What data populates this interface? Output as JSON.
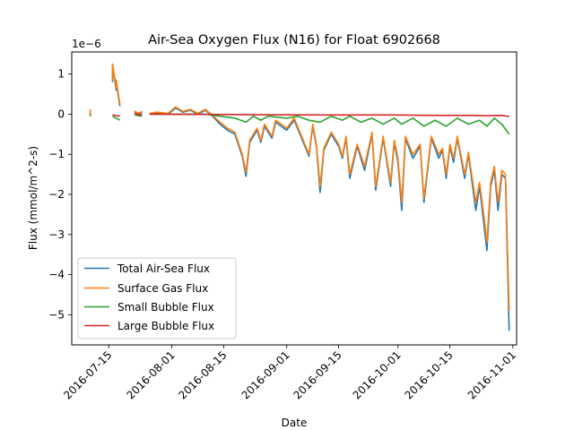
{
  "chart_data": {
    "type": "line",
    "title": "Air-Sea Oxygen Flux (N16) for Float 6902668",
    "xlabel": "Date",
    "ylabel": "Flux (mmol/m^2-s)",
    "y_offset_label": "1e−6",
    "x_ticks": [
      "2016-07-15",
      "2016-08-01",
      "2016-08-15",
      "2016-09-01",
      "2016-09-15",
      "2016-10-01",
      "2016-10-15",
      "2016-11-01"
    ],
    "y_ticks": [
      "1",
      "0",
      "−1",
      "−2",
      "−3",
      "−4",
      "−5"
    ],
    "x_range": [
      "2016-07-05",
      "2016-11-02"
    ],
    "ylim": [
      -5.75,
      1.55
    ],
    "grid": false,
    "legend_position": "lower-left",
    "series": [
      {
        "name": "Total Air-Sea Flux",
        "color": "#1f77b4",
        "points": [
          [
            "2016-07-10",
            0.1
          ],
          [
            "2016-07-10",
            -0.05
          ],
          [
            null,
            null
          ],
          [
            "2016-07-16",
            0.8
          ],
          [
            "2016-07-16",
            1.2
          ],
          [
            "2016-07-17",
            0.6
          ],
          [
            "2016-07-17",
            0.8
          ],
          [
            "2016-07-18",
            0.2
          ],
          [
            null,
            null
          ],
          [
            "2016-07-22",
            0.0
          ],
          [
            "2016-07-22",
            0.05
          ],
          [
            "2016-07-23",
            0.0
          ],
          [
            "2016-07-24",
            0.05
          ],
          [
            null,
            null
          ],
          [
            "2016-07-26",
            0.0
          ],
          [
            "2016-07-28",
            0.03
          ],
          [
            "2016-07-31",
            0.0
          ],
          [
            "2016-08-02",
            0.15
          ],
          [
            "2016-08-04",
            0.05
          ],
          [
            "2016-08-06",
            0.1
          ],
          [
            "2016-08-08",
            0.0
          ],
          [
            "2016-08-10",
            0.1
          ],
          [
            "2016-08-12",
            -0.05
          ],
          [
            "2016-08-14",
            -0.25
          ],
          [
            "2016-08-16",
            -0.4
          ],
          [
            "2016-08-18",
            -0.5
          ],
          [
            "2016-08-20",
            -1.05
          ],
          [
            "2016-08-21",
            -1.55
          ],
          [
            "2016-08-22",
            -0.7
          ],
          [
            "2016-08-24",
            -0.4
          ],
          [
            "2016-08-25",
            -0.7
          ],
          [
            "2016-08-26",
            -0.3
          ],
          [
            "2016-08-28",
            -0.6
          ],
          [
            "2016-08-29",
            -0.2
          ],
          [
            "2016-09-01",
            -0.4
          ],
          [
            "2016-09-03",
            -0.15
          ],
          [
            "2016-09-05",
            -0.6
          ],
          [
            "2016-09-07",
            -1.05
          ],
          [
            "2016-09-08",
            -0.3
          ],
          [
            "2016-09-09",
            -0.8
          ],
          [
            "2016-09-10",
            -1.95
          ],
          [
            "2016-09-11",
            -0.9
          ],
          [
            "2016-09-13",
            -0.5
          ],
          [
            "2016-09-15",
            -0.8
          ],
          [
            "2016-09-16",
            -1.1
          ],
          [
            "2016-09-17",
            -0.6
          ],
          [
            "2016-09-18",
            -1.6
          ],
          [
            "2016-09-20",
            -0.8
          ],
          [
            "2016-09-22",
            -1.4
          ],
          [
            "2016-09-24",
            -0.5
          ],
          [
            "2016-09-25",
            -1.9
          ],
          [
            "2016-09-27",
            -0.6
          ],
          [
            "2016-09-29",
            -1.8
          ],
          [
            "2016-09-30",
            -0.7
          ],
          [
            "2016-10-01",
            -1.2
          ],
          [
            "2016-10-02",
            -2.4
          ],
          [
            "2016-10-03",
            -0.6
          ],
          [
            "2016-10-05",
            -1.1
          ],
          [
            "2016-10-07",
            -0.8
          ],
          [
            "2016-10-08",
            -2.2
          ],
          [
            "2016-10-10",
            -0.6
          ],
          [
            "2016-10-12",
            -1.1
          ],
          [
            "2016-10-13",
            -0.9
          ],
          [
            "2016-10-14",
            -1.6
          ],
          [
            "2016-10-15",
            -0.8
          ],
          [
            "2016-10-16",
            -1.2
          ],
          [
            "2016-10-17",
            -0.6
          ],
          [
            "2016-10-19",
            -1.6
          ],
          [
            "2016-10-20",
            -1.0
          ],
          [
            "2016-10-22",
            -2.4
          ],
          [
            "2016-10-23",
            -1.8
          ],
          [
            "2016-10-24",
            -2.6
          ],
          [
            "2016-10-25",
            -3.4
          ],
          [
            "2016-10-26",
            -1.8
          ],
          [
            "2016-10-27",
            -1.4
          ],
          [
            "2016-10-28",
            -2.4
          ],
          [
            "2016-10-29",
            -1.5
          ],
          [
            "2016-10-30",
            -1.6
          ],
          [
            "2016-10-31",
            -5.4
          ]
        ]
      },
      {
        "name": "Surface Gas Flux",
        "color": "#ff7f0e",
        "points": [
          [
            "2016-07-10",
            0.12
          ],
          [
            "2016-07-10",
            -0.03
          ],
          [
            null,
            null
          ],
          [
            "2016-07-16",
            0.85
          ],
          [
            "2016-07-16",
            1.25
          ],
          [
            "2016-07-17",
            0.65
          ],
          [
            "2016-07-17",
            0.85
          ],
          [
            "2016-07-18",
            0.25
          ],
          [
            null,
            null
          ],
          [
            "2016-07-22",
            0.02
          ],
          [
            "2016-07-22",
            0.07
          ],
          [
            "2016-07-23",
            0.02
          ],
          [
            "2016-07-24",
            0.07
          ],
          [
            null,
            null
          ],
          [
            "2016-07-26",
            0.02
          ],
          [
            "2016-07-28",
            0.05
          ],
          [
            "2016-07-31",
            0.02
          ],
          [
            "2016-08-02",
            0.18
          ],
          [
            "2016-08-04",
            0.07
          ],
          [
            "2016-08-06",
            0.12
          ],
          [
            "2016-08-08",
            0.02
          ],
          [
            "2016-08-10",
            0.12
          ],
          [
            "2016-08-12",
            -0.03
          ],
          [
            "2016-08-14",
            -0.2
          ],
          [
            "2016-08-16",
            -0.35
          ],
          [
            "2016-08-18",
            -0.45
          ],
          [
            "2016-08-20",
            -1.0
          ],
          [
            "2016-08-21",
            -1.45
          ],
          [
            "2016-08-22",
            -0.65
          ],
          [
            "2016-08-24",
            -0.35
          ],
          [
            "2016-08-25",
            -0.65
          ],
          [
            "2016-08-26",
            -0.25
          ],
          [
            "2016-08-28",
            -0.55
          ],
          [
            "2016-08-29",
            -0.15
          ],
          [
            "2016-09-01",
            -0.35
          ],
          [
            "2016-09-03",
            -0.1
          ],
          [
            "2016-09-05",
            -0.55
          ],
          [
            "2016-09-07",
            -1.0
          ],
          [
            "2016-09-08",
            -0.25
          ],
          [
            "2016-09-09",
            -0.75
          ],
          [
            "2016-09-10",
            -1.8
          ],
          [
            "2016-09-11",
            -0.85
          ],
          [
            "2016-09-13",
            -0.45
          ],
          [
            "2016-09-15",
            -0.75
          ],
          [
            "2016-09-16",
            -1.05
          ],
          [
            "2016-09-17",
            -0.55
          ],
          [
            "2016-09-18",
            -1.5
          ],
          [
            "2016-09-20",
            -0.75
          ],
          [
            "2016-09-22",
            -1.3
          ],
          [
            "2016-09-24",
            -0.45
          ],
          [
            "2016-09-25",
            -1.8
          ],
          [
            "2016-09-27",
            -0.55
          ],
          [
            "2016-09-29",
            -1.7
          ],
          [
            "2016-09-30",
            -0.65
          ],
          [
            "2016-10-01",
            -1.1
          ],
          [
            "2016-10-02",
            -2.2
          ],
          [
            "2016-10-03",
            -0.55
          ],
          [
            "2016-10-05",
            -1.0
          ],
          [
            "2016-10-07",
            -0.75
          ],
          [
            "2016-10-08",
            -2.1
          ],
          [
            "2016-10-10",
            -0.55
          ],
          [
            "2016-10-12",
            -1.0
          ],
          [
            "2016-10-13",
            -0.85
          ],
          [
            "2016-10-14",
            -1.5
          ],
          [
            "2016-10-15",
            -0.75
          ],
          [
            "2016-10-16",
            -1.1
          ],
          [
            "2016-10-17",
            -0.55
          ],
          [
            "2016-10-19",
            -1.5
          ],
          [
            "2016-10-20",
            -0.95
          ],
          [
            "2016-10-22",
            -2.2
          ],
          [
            "2016-10-23",
            -1.7
          ],
          [
            "2016-10-24",
            -2.4
          ],
          [
            "2016-10-25",
            -3.2
          ],
          [
            "2016-10-26",
            -1.7
          ],
          [
            "2016-10-27",
            -1.3
          ],
          [
            "2016-10-28",
            -2.2
          ],
          [
            "2016-10-29",
            -1.4
          ],
          [
            "2016-10-30",
            -1.5
          ],
          [
            "2016-10-31",
            -4.9
          ]
        ]
      },
      {
        "name": "Small Bubble Flux",
        "color": "#2ca02c",
        "points": [
          [
            "2016-07-10",
            0.0
          ],
          [
            "2016-07-10",
            -0.05
          ],
          [
            null,
            null
          ],
          [
            "2016-07-16",
            -0.05
          ],
          [
            "2016-07-18",
            -0.15
          ],
          [
            null,
            null
          ],
          [
            "2016-07-22",
            -0.02
          ],
          [
            "2016-07-24",
            -0.05
          ],
          [
            null,
            null
          ],
          [
            "2016-07-26",
            0.0
          ],
          [
            "2016-08-10",
            0.0
          ],
          [
            "2016-08-14",
            -0.05
          ],
          [
            "2016-08-18",
            -0.1
          ],
          [
            "2016-08-21",
            -0.2
          ],
          [
            "2016-08-23",
            -0.05
          ],
          [
            "2016-08-25",
            -0.15
          ],
          [
            "2016-08-27",
            -0.05
          ],
          [
            "2016-09-01",
            -0.1
          ],
          [
            "2016-09-04",
            -0.05
          ],
          [
            "2016-09-07",
            -0.15
          ],
          [
            "2016-09-10",
            -0.2
          ],
          [
            "2016-09-13",
            -0.05
          ],
          [
            "2016-09-16",
            -0.15
          ],
          [
            "2016-09-18",
            -0.05
          ],
          [
            "2016-09-21",
            -0.2
          ],
          [
            "2016-09-24",
            -0.1
          ],
          [
            "2016-09-27",
            -0.25
          ],
          [
            "2016-09-30",
            -0.1
          ],
          [
            "2016-10-02",
            -0.25
          ],
          [
            "2016-10-05",
            -0.1
          ],
          [
            "2016-10-08",
            -0.3
          ],
          [
            "2016-10-11",
            -0.15
          ],
          [
            "2016-10-14",
            -0.3
          ],
          [
            "2016-10-17",
            -0.1
          ],
          [
            "2016-10-20",
            -0.25
          ],
          [
            "2016-10-23",
            -0.15
          ],
          [
            "2016-10-25",
            -0.3
          ],
          [
            "2016-10-27",
            -0.1
          ],
          [
            "2016-10-29",
            -0.25
          ],
          [
            "2016-10-31",
            -0.5
          ]
        ]
      },
      {
        "name": "Large Bubble Flux",
        "color": "#d62728",
        "points": [
          [
            "2016-07-10",
            0.0
          ],
          [
            "2016-07-10",
            -0.02
          ],
          [
            null,
            null
          ],
          [
            "2016-07-16",
            -0.02
          ],
          [
            "2016-07-18",
            -0.05
          ],
          [
            null,
            null
          ],
          [
            "2016-07-22",
            0.0
          ],
          [
            "2016-07-24",
            -0.01
          ],
          [
            null,
            null
          ],
          [
            "2016-07-26",
            0.0
          ],
          [
            "2016-08-20",
            -0.01
          ],
          [
            "2016-09-10",
            -0.02
          ],
          [
            "2016-09-30",
            -0.02
          ],
          [
            "2016-10-10",
            -0.03
          ],
          [
            "2016-10-20",
            -0.03
          ],
          [
            "2016-10-25",
            -0.04
          ],
          [
            "2016-10-29",
            -0.03
          ],
          [
            "2016-10-31",
            -0.06
          ]
        ]
      }
    ]
  }
}
